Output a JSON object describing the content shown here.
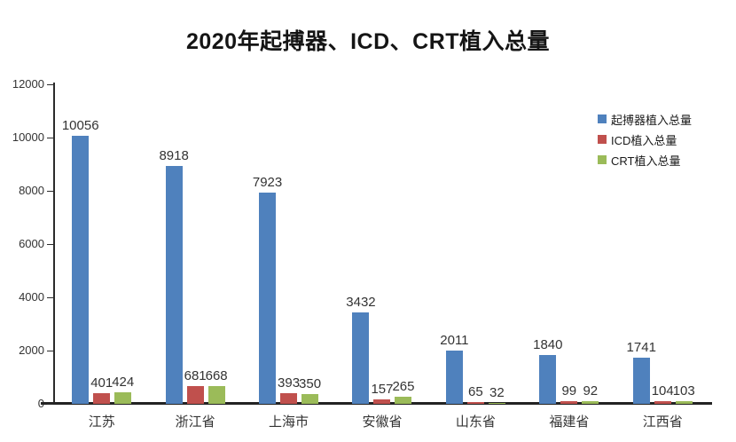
{
  "title": "2020年起搏器、ICD、CRT植入总量",
  "chart_data": {
    "type": "bar",
    "title": "2020年起搏器、ICD、CRT植入总量",
    "categories": [
      "江苏",
      "浙江省",
      "上海市",
      "安徽省",
      "山东省",
      "福建省",
      "江西省"
    ],
    "series": [
      {
        "name": "起搏器植入总量",
        "color": "#4F81BD",
        "values": [
          10056,
          8918,
          7923,
          3432,
          2011,
          1840,
          1741
        ]
      },
      {
        "name": "ICD植入总量",
        "color": "#C0504D",
        "values": [
          401,
          681,
          393,
          157,
          65,
          99,
          104
        ]
      },
      {
        "name": "CRT植入总量",
        "color": "#9BBB59",
        "values": [
          424,
          668,
          350,
          265,
          32,
          92,
          103
        ]
      }
    ],
    "xlabel": "",
    "ylabel": "",
    "ylim": [
      0,
      12000
    ],
    "ytick_step": 2000,
    "ytick_labels": [
      "0",
      "2000",
      "4000",
      "6000",
      "8000",
      "10000",
      "12000"
    ],
    "grid": false,
    "data_labels": true,
    "legend_position": "right"
  }
}
